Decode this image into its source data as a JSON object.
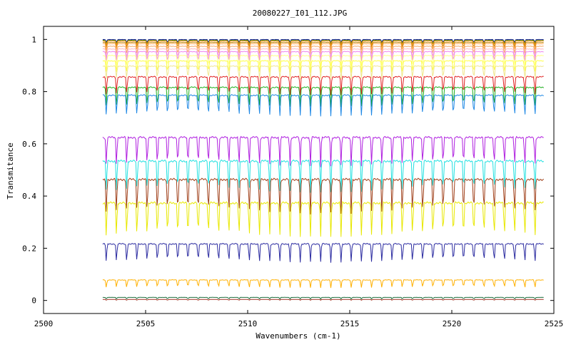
{
  "chart_data": {
    "type": "line",
    "title": "20080227_I01_112.JPG",
    "xlabel": "Wavenumbers (cm-1)",
    "ylabel": "Transmitance",
    "xlim": [
      2500,
      2525
    ],
    "ylim": [
      -0.05,
      1.05
    ],
    "xticks": [
      2500,
      2505,
      2510,
      2515,
      2520,
      2525
    ],
    "yticks": [
      0,
      0.2,
      0.4,
      0.6,
      0.8,
      1
    ],
    "ytick_labels": [
      "0",
      "0.2",
      "0.4",
      "0.6",
      "0.8",
      "1"
    ],
    "grid": false,
    "legend": "none",
    "x_range": [
      2502.9,
      2524.5
    ],
    "line_spacing_cm1": 0.5,
    "series": [
      {
        "baseline": 1.0,
        "depth": 0.012,
        "color": "#1a1a8c"
      },
      {
        "baseline": 0.997,
        "depth": 0.014,
        "color": "#228b22"
      },
      {
        "baseline": 0.995,
        "depth": 0.016,
        "color": "#ff8c00"
      },
      {
        "baseline": 0.99,
        "depth": 0.02,
        "color": "#b8860b"
      },
      {
        "baseline": 0.985,
        "depth": 0.025,
        "color": "#ffa040"
      },
      {
        "baseline": 0.975,
        "depth": 0.03,
        "color": "#f4a460"
      },
      {
        "baseline": 0.965,
        "depth": 0.035,
        "color": "#ffb6c1"
      },
      {
        "baseline": 0.955,
        "depth": 0.038,
        "color": "#ee82ee"
      },
      {
        "baseline": 0.94,
        "depth": 0.04,
        "color": "#ffff80"
      },
      {
        "baseline": 0.92,
        "depth": 0.045,
        "color": "#ffff40"
      },
      {
        "baseline": 0.9,
        "depth": 0.05,
        "color": "#f0e68c"
      },
      {
        "baseline": 0.86,
        "depth": 0.07,
        "color": "#e02020"
      },
      {
        "baseline": 0.82,
        "depth": 0.075,
        "color": "#20b020"
      },
      {
        "baseline": 0.79,
        "depth": 0.08,
        "color": "#1e88e5"
      },
      {
        "baseline": 0.63,
        "depth": 0.11,
        "color": "#b020e0"
      },
      {
        "baseline": 0.54,
        "depth": 0.12,
        "color": "#20e0e0"
      },
      {
        "baseline": 0.47,
        "depth": 0.13,
        "color": "#a0401a"
      },
      {
        "baseline": 0.38,
        "depth": 0.13,
        "color": "#e8e800"
      },
      {
        "baseline": 0.22,
        "depth": 0.07,
        "color": "#2a2aa0"
      },
      {
        "baseline": 0.08,
        "depth": 0.03,
        "color": "#ffb000"
      },
      {
        "baseline": 0.012,
        "depth": 0.006,
        "color": "#207040"
      },
      {
        "baseline": 0.004,
        "depth": 0.003,
        "color": "#a03020"
      }
    ]
  }
}
